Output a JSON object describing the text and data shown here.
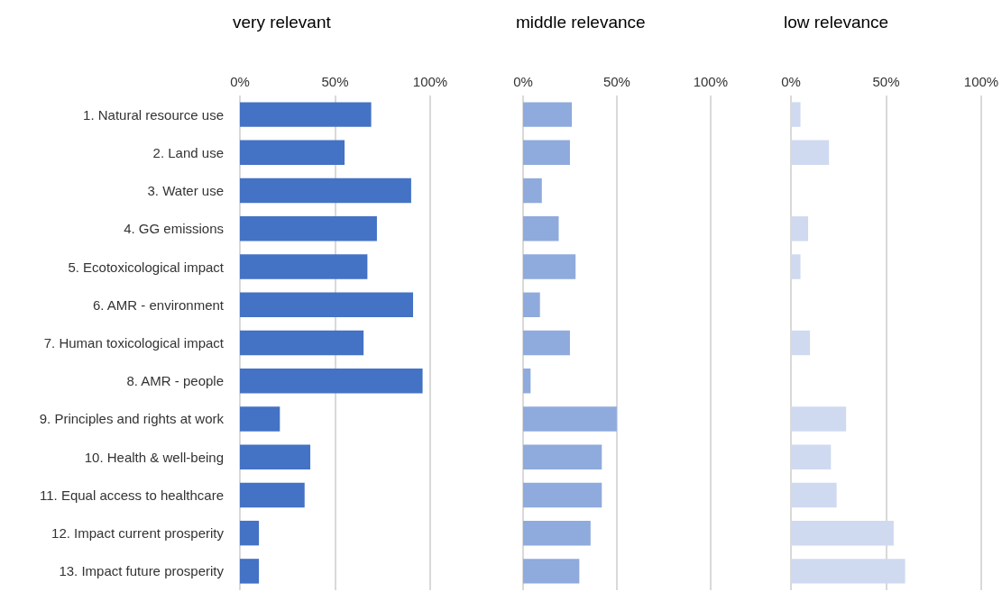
{
  "chart_data": [
    {
      "type": "bar",
      "orientation": "horizontal",
      "title": "very relevant",
      "categories": [
        "1. Natural resource use",
        "2. Land use",
        "3. Water use",
        "4. GG emissions",
        "5. Ecotoxicological impact",
        "6. AMR - environment",
        "7. Human toxicological impact",
        "8. AMR - people",
        "9. Principles and rights at work",
        "10. Health & well-being",
        "11. Equal access to healthcare",
        "12. Impact current prosperity",
        "13. Impact future prosperity"
      ],
      "values": [
        69,
        55,
        90,
        72,
        67,
        91,
        65,
        96,
        21,
        37,
        34,
        10,
        10
      ],
      "color": "#4472c4",
      "xlim": [
        0,
        100
      ],
      "xticks": [
        {
          "value": 0,
          "label": "0%"
        },
        {
          "value": 50,
          "label": "50%"
        },
        {
          "value": 100,
          "label": "100%"
        }
      ],
      "grid": "x"
    },
    {
      "type": "bar",
      "orientation": "horizontal",
      "title": "middle relevance",
      "categories": [
        null,
        null,
        null,
        null,
        null,
        null,
        null,
        null,
        null,
        null,
        null,
        null,
        null
      ],
      "values": [
        26,
        25,
        10,
        19,
        28,
        9,
        25,
        4,
        50,
        42,
        42,
        36,
        30
      ],
      "color": "#8faadc",
      "xlim": [
        0,
        100
      ],
      "xticks": [
        {
          "value": 0,
          "label": "0%"
        },
        {
          "value": 50,
          "label": "50%"
        },
        {
          "value": 100,
          "label": "100%"
        }
      ],
      "grid": "x"
    },
    {
      "type": "bar",
      "orientation": "horizontal",
      "title": "low relevance",
      "categories": [
        null,
        null,
        null,
        null,
        null,
        null,
        null,
        null,
        null,
        null,
        null,
        null,
        null
      ],
      "values": [
        5,
        20,
        0,
        9,
        5,
        0,
        10,
        0,
        29,
        21,
        24,
        54,
        60
      ],
      "color": "#cfdaf1",
      "xlim": [
        0,
        100
      ],
      "xticks": [
        {
          "value": 0,
          "label": "0%"
        },
        {
          "value": 50,
          "label": "50%"
        },
        {
          "value": 100,
          "label": "100%"
        }
      ],
      "grid": "x"
    }
  ]
}
